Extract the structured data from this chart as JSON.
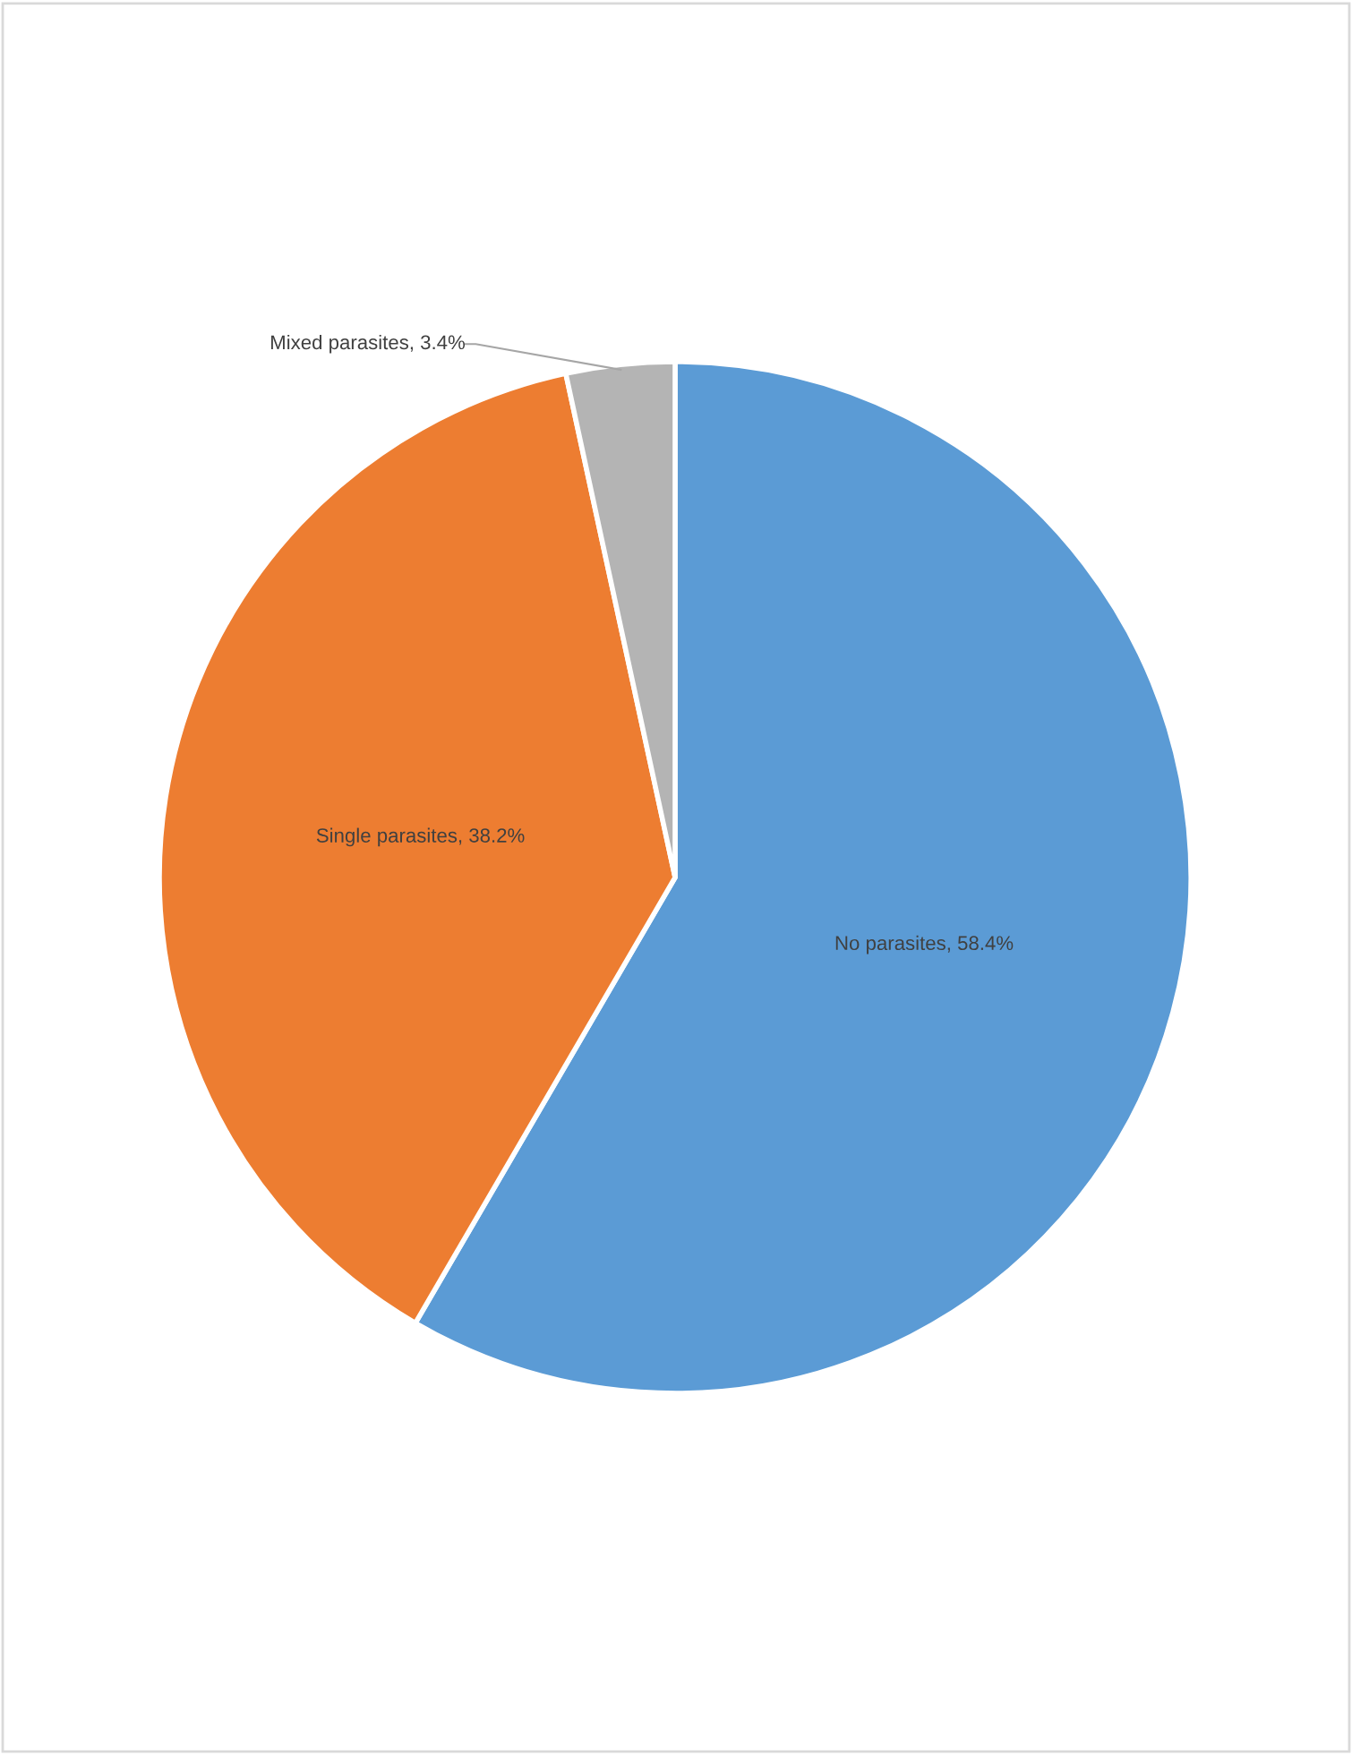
{
  "chart_data": {
    "type": "pie",
    "categories": [
      "No parasites",
      "Single parasites",
      "Mixed parasites"
    ],
    "values": [
      58.4,
      38.2,
      3.4
    ],
    "colors": [
      "#5b9bd5",
      "#ed7d31",
      "#b4b4b4"
    ],
    "value_labels": [
      "58.4%",
      "38.2%",
      "3.4%"
    ],
    "legend": false
  }
}
